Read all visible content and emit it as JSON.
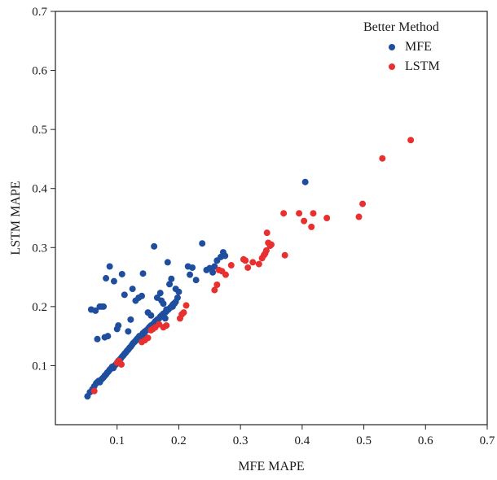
{
  "chart_data": {
    "type": "scatter",
    "xlabel": "MFE MAPE",
    "ylabel": "LSTM MAPE",
    "xlim": [
      0.0,
      0.7
    ],
    "ylim": [
      0.0,
      0.7
    ],
    "x_ticks": [
      0.1,
      0.2,
      0.3,
      0.4,
      0.5,
      0.6,
      0.7
    ],
    "y_ticks": [
      0.1,
      0.2,
      0.3,
      0.4,
      0.5,
      0.6,
      0.7
    ],
    "grid": false,
    "legend": {
      "title": "Better Method",
      "position": "top-right"
    },
    "series": [
      {
        "name": "MFE",
        "color": "#1f4e9e",
        "points": [
          [
            0.052,
            0.048
          ],
          [
            0.056,
            0.055
          ],
          [
            0.06,
            0.06
          ],
          [
            0.063,
            0.065
          ],
          [
            0.066,
            0.07
          ],
          [
            0.068,
            0.072
          ],
          [
            0.07,
            0.074
          ],
          [
            0.072,
            0.072
          ],
          [
            0.074,
            0.076
          ],
          [
            0.076,
            0.078
          ],
          [
            0.078,
            0.08
          ],
          [
            0.08,
            0.083
          ],
          [
            0.082,
            0.085
          ],
          [
            0.084,
            0.088
          ],
          [
            0.086,
            0.09
          ],
          [
            0.088,
            0.093
          ],
          [
            0.09,
            0.095
          ],
          [
            0.092,
            0.098
          ],
          [
            0.094,
            0.096
          ],
          [
            0.096,
            0.1
          ],
          [
            0.098,
            0.102
          ],
          [
            0.1,
            0.105
          ],
          [
            0.102,
            0.108
          ],
          [
            0.104,
            0.11
          ],
          [
            0.106,
            0.112
          ],
          [
            0.108,
            0.115
          ],
          [
            0.11,
            0.117
          ],
          [
            0.112,
            0.12
          ],
          [
            0.114,
            0.122
          ],
          [
            0.116,
            0.125
          ],
          [
            0.118,
            0.127
          ],
          [
            0.12,
            0.13
          ],
          [
            0.122,
            0.132
          ],
          [
            0.124,
            0.135
          ],
          [
            0.126,
            0.138
          ],
          [
            0.128,
            0.14
          ],
          [
            0.13,
            0.142
          ],
          [
            0.132,
            0.145
          ],
          [
            0.134,
            0.147
          ],
          [
            0.136,
            0.15
          ],
          [
            0.138,
            0.148
          ],
          [
            0.14,
            0.152
          ],
          [
            0.142,
            0.155
          ],
          [
            0.145,
            0.158
          ],
          [
            0.148,
            0.16
          ],
          [
            0.15,
            0.162
          ],
          [
            0.152,
            0.165
          ],
          [
            0.155,
            0.168
          ],
          [
            0.158,
            0.17
          ],
          [
            0.16,
            0.172
          ],
          [
            0.162,
            0.175
          ],
          [
            0.165,
            0.178
          ],
          [
            0.168,
            0.18
          ],
          [
            0.17,
            0.183
          ],
          [
            0.172,
            0.185
          ],
          [
            0.175,
            0.188
          ],
          [
            0.178,
            0.19
          ],
          [
            0.18,
            0.192
          ],
          [
            0.183,
            0.195
          ],
          [
            0.186,
            0.198
          ],
          [
            0.188,
            0.2
          ],
          [
            0.19,
            0.203
          ],
          [
            0.193,
            0.205
          ],
          [
            0.195,
            0.208
          ],
          [
            0.058,
            0.195
          ],
          [
            0.065,
            0.193
          ],
          [
            0.068,
            0.145
          ],
          [
            0.072,
            0.2
          ],
          [
            0.075,
            0.2
          ],
          [
            0.078,
            0.2
          ],
          [
            0.08,
            0.148
          ],
          [
            0.082,
            0.248
          ],
          [
            0.085,
            0.15
          ],
          [
            0.088,
            0.268
          ],
          [
            0.095,
            0.243
          ],
          [
            0.1,
            0.162
          ],
          [
            0.102,
            0.168
          ],
          [
            0.108,
            0.255
          ],
          [
            0.112,
            0.22
          ],
          [
            0.118,
            0.158
          ],
          [
            0.122,
            0.178
          ],
          [
            0.125,
            0.23
          ],
          [
            0.13,
            0.21
          ],
          [
            0.135,
            0.215
          ],
          [
            0.14,
            0.218
          ],
          [
            0.142,
            0.256
          ],
          [
            0.145,
            0.15
          ],
          [
            0.15,
            0.19
          ],
          [
            0.155,
            0.185
          ],
          [
            0.16,
            0.302
          ],
          [
            0.165,
            0.215
          ],
          [
            0.17,
            0.223
          ],
          [
            0.172,
            0.21
          ],
          [
            0.175,
            0.205
          ],
          [
            0.178,
            0.18
          ],
          [
            0.18,
            0.195
          ],
          [
            0.182,
            0.275
          ],
          [
            0.185,
            0.238
          ],
          [
            0.188,
            0.247
          ],
          [
            0.19,
            0.2
          ],
          [
            0.192,
            0.205
          ],
          [
            0.195,
            0.23
          ],
          [
            0.198,
            0.215
          ],
          [
            0.2,
            0.225
          ],
          [
            0.215,
            0.268
          ],
          [
            0.218,
            0.254
          ],
          [
            0.222,
            0.266
          ],
          [
            0.228,
            0.245
          ],
          [
            0.238,
            0.307
          ],
          [
            0.245,
            0.262
          ],
          [
            0.25,
            0.265
          ],
          [
            0.255,
            0.258
          ],
          [
            0.258,
            0.268
          ],
          [
            0.262,
            0.278
          ],
          [
            0.268,
            0.284
          ],
          [
            0.272,
            0.292
          ],
          [
            0.275,
            0.286
          ],
          [
            0.405,
            0.411
          ]
        ]
      },
      {
        "name": "LSTM",
        "color": "#e83030",
        "points": [
          [
            0.063,
            0.057
          ],
          [
            0.1,
            0.105
          ],
          [
            0.103,
            0.108
          ],
          [
            0.105,
            0.104
          ],
          [
            0.107,
            0.102
          ],
          [
            0.14,
            0.14
          ],
          [
            0.145,
            0.143
          ],
          [
            0.15,
            0.147
          ],
          [
            0.155,
            0.16
          ],
          [
            0.158,
            0.162
          ],
          [
            0.162,
            0.165
          ],
          [
            0.168,
            0.17
          ],
          [
            0.175,
            0.165
          ],
          [
            0.18,
            0.168
          ],
          [
            0.202,
            0.18
          ],
          [
            0.205,
            0.187
          ],
          [
            0.208,
            0.19
          ],
          [
            0.212,
            0.202
          ],
          [
            0.258,
            0.228
          ],
          [
            0.262,
            0.237
          ],
          [
            0.265,
            0.262
          ],
          [
            0.27,
            0.26
          ],
          [
            0.276,
            0.254
          ],
          [
            0.285,
            0.27
          ],
          [
            0.305,
            0.28
          ],
          [
            0.308,
            0.278
          ],
          [
            0.312,
            0.266
          ],
          [
            0.32,
            0.275
          ],
          [
            0.33,
            0.272
          ],
          [
            0.335,
            0.282
          ],
          [
            0.338,
            0.287
          ],
          [
            0.34,
            0.29
          ],
          [
            0.342,
            0.295
          ],
          [
            0.343,
            0.325
          ],
          [
            0.345,
            0.308
          ],
          [
            0.348,
            0.303
          ],
          [
            0.35,
            0.305
          ],
          [
            0.37,
            0.358
          ],
          [
            0.372,
            0.287
          ],
          [
            0.395,
            0.358
          ],
          [
            0.403,
            0.345
          ],
          [
            0.415,
            0.335
          ],
          [
            0.418,
            0.358
          ],
          [
            0.44,
            0.35
          ],
          [
            0.492,
            0.352
          ],
          [
            0.498,
            0.374
          ],
          [
            0.53,
            0.451
          ],
          [
            0.576,
            0.482
          ]
        ]
      }
    ]
  }
}
